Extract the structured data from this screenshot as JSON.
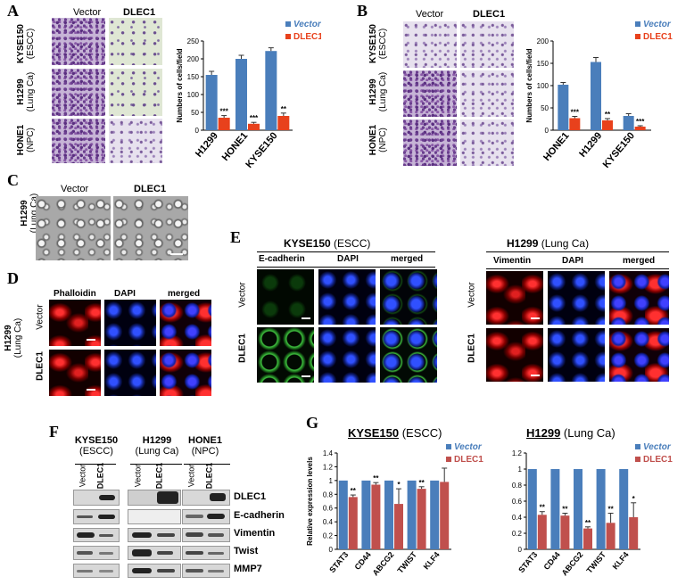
{
  "panels": {
    "A": {
      "letter": "A",
      "col_headers": [
        "Vector",
        "DLEC1"
      ],
      "row_labels": [
        {
          "line1": "KYSE150",
          "line2": "(ESCC)"
        },
        {
          "line1": "H1299",
          "line2": "(Lung Ca)"
        },
        {
          "line1": "HONE1",
          "line2": "(NPC)"
        }
      ]
    },
    "B": {
      "letter": "B",
      "col_headers": [
        "Vector",
        "DLEC1"
      ],
      "row_labels": [
        {
          "line1": "KYSE150",
          "line2": "(ESCC)"
        },
        {
          "line1": "H1299",
          "line2": "(Lung Ca)"
        },
        {
          "line1": "HONE1",
          "line2": "(NPC)"
        }
      ]
    },
    "C": {
      "letter": "C",
      "col_headers": [
        "Vector",
        "DLEC1"
      ],
      "row_label": {
        "line1": "H1299",
        "line2": "(Lung Ca)"
      }
    },
    "D": {
      "letter": "D",
      "col_headers": [
        "Phalloidin",
        "DAPI",
        "merged"
      ],
      "group_label": {
        "line1": "H1299",
        "line2": "(Lung Ca)"
      },
      "row_labels": [
        "Vector",
        "DLEC1"
      ]
    },
    "E": {
      "letter": "E",
      "left_title_bold": "KYSE150",
      "left_title_rest": " (ESCC)",
      "left_cols": [
        "E-cadherin",
        "DAPI",
        "merged"
      ],
      "right_title_bold": "H1299",
      "right_title_rest": " (Lung Ca)",
      "right_cols": [
        "Vimentin",
        "DAPI",
        "merged"
      ],
      "row_labels": [
        "Vector",
        "DLEC1"
      ]
    },
    "F": {
      "letter": "F",
      "groups": [
        {
          "line1": "KYSE150",
          "line2": "(ESCC)"
        },
        {
          "line1": "H1299",
          "line2": "(Lung Ca)"
        },
        {
          "line1": "HONE1",
          "line2": "(NPC)"
        }
      ],
      "lanes": [
        "Vector",
        "DLEC1"
      ],
      "proteins": [
        "DLEC1",
        "E-cadherin",
        "Vimentin",
        "Twist",
        "MMP7"
      ]
    },
    "G": {
      "letter": "G",
      "left_title_bold": "KYSE150",
      "left_title_rest": " (ESCC)",
      "right_title_bold": "H1299",
      "right_title_rest": " (Lung Ca)"
    }
  },
  "chart_data": [
    {
      "id": "A",
      "type": "bar",
      "categories": [
        "H1299",
        "HONE1",
        "KYSE150"
      ],
      "series": [
        {
          "name": "Vector",
          "values": [
            155,
            200,
            222
          ],
          "errors": [
            10,
            10,
            9
          ],
          "color": "#4a7ebb"
        },
        {
          "name": "DLEC1",
          "values": [
            35,
            18,
            40
          ],
          "errors": [
            6,
            4,
            8
          ],
          "color": "#e8411c"
        }
      ],
      "significance": [
        "***",
        "***",
        "**"
      ],
      "ylabel": "Numbers of cells/field",
      "ylim": [
        0,
        250
      ],
      "yticks": [
        0,
        50,
        100,
        150,
        200,
        250
      ],
      "legend_position": "top-right"
    },
    {
      "id": "B",
      "type": "bar",
      "categories": [
        "HONE1",
        "H1299",
        "KYSE150"
      ],
      "series": [
        {
          "name": "Vector",
          "values": [
            102,
            153,
            32
          ],
          "errors": [
            5,
            10,
            5
          ],
          "color": "#4a7ebb"
        },
        {
          "name": "DLEC1",
          "values": [
            27,
            22,
            8
          ],
          "errors": [
            4,
            4,
            2
          ],
          "color": "#e8411c"
        }
      ],
      "significance": [
        "***",
        "**",
        "***"
      ],
      "ylabel": "Numbers of cells/field",
      "ylim": [
        0,
        200
      ],
      "yticks": [
        0,
        50,
        100,
        150,
        200
      ],
      "legend_position": "top-right"
    },
    {
      "id": "G-left",
      "type": "bar",
      "categories": [
        "STAT3",
        "CD44",
        "ABCG2",
        "TWIST",
        "KLF4"
      ],
      "series": [
        {
          "name": "Vector",
          "values": [
            1,
            1,
            1,
            1,
            1
          ],
          "color": "#4a7ebb"
        },
        {
          "name": "DLEC1",
          "values": [
            0.76,
            0.94,
            0.66,
            0.88,
            0.98
          ],
          "errors": [
            0.03,
            0.03,
            0.22,
            0.03,
            0.2
          ],
          "color": "#c0504d"
        }
      ],
      "significance": [
        "**",
        "**",
        "*",
        "**",
        ""
      ],
      "ylabel": "Relative expression levels",
      "ylim": [
        0,
        1.4
      ],
      "yticks": [
        0,
        0.2,
        0.4,
        0.6,
        0.8,
        1,
        1.2,
        1.4
      ],
      "legend_position": "top-right"
    },
    {
      "id": "G-right",
      "type": "bar",
      "categories": [
        "STAT3",
        "CD44",
        "ABCG2",
        "TWIST",
        "KLF4"
      ],
      "series": [
        {
          "name": "Vector",
          "values": [
            1,
            1,
            1,
            1,
            1
          ],
          "color": "#4a7ebb"
        },
        {
          "name": "DLEC1",
          "values": [
            0.43,
            0.42,
            0.26,
            0.33,
            0.4
          ],
          "errors": [
            0.04,
            0.03,
            0.02,
            0.12,
            0.18
          ],
          "color": "#c0504d"
        }
      ],
      "significance": [
        "**",
        "**",
        "**",
        "**",
        "*"
      ],
      "ylim": [
        0,
        1.2
      ],
      "yticks": [
        0,
        0.2,
        0.4,
        0.6,
        0.8,
        1,
        1.2
      ],
      "legend_position": "top-right"
    }
  ]
}
